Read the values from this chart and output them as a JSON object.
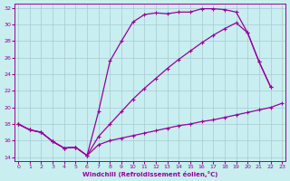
{
  "xlabel": "Windchill (Refroidissement éolien,°C)",
  "bg_color": "#c8eef0",
  "grid_color": "#aac8d0",
  "line_color": "#990099",
  "xlim": [
    -0.3,
    23.3
  ],
  "ylim": [
    13.5,
    32.5
  ],
  "xticks": [
    0,
    1,
    2,
    3,
    4,
    5,
    6,
    7,
    8,
    9,
    10,
    11,
    12,
    13,
    14,
    15,
    16,
    17,
    18,
    19,
    20,
    21,
    22,
    23
  ],
  "yticks": [
    14,
    16,
    18,
    20,
    22,
    24,
    26,
    28,
    30,
    32
  ],
  "s1_x": [
    0,
    1,
    2,
    3,
    4,
    5,
    6,
    7,
    8,
    9,
    10,
    11,
    12,
    13,
    14,
    15,
    16,
    17,
    18,
    19,
    20,
    21,
    22,
    23
  ],
  "s1_y": [
    18,
    17.3,
    17.0,
    15.9,
    15.1,
    15.2,
    14.2,
    15.5,
    16.0,
    16.3,
    16.6,
    16.9,
    17.2,
    17.5,
    17.8,
    18.0,
    18.3,
    18.5,
    18.8,
    19.1,
    19.4,
    19.7,
    20.0,
    20.5
  ],
  "s2_x": [
    0,
    1,
    2,
    3,
    4,
    5,
    6,
    7,
    8,
    9,
    10,
    11,
    12,
    13,
    14,
    15,
    16,
    17,
    18,
    19,
    20,
    21,
    22
  ],
  "s2_y": [
    18,
    17.3,
    17.0,
    15.9,
    15.1,
    15.2,
    14.2,
    19.5,
    25.6,
    28.0,
    30.3,
    31.2,
    31.4,
    31.3,
    31.5,
    31.5,
    31.9,
    31.9,
    31.8,
    31.5,
    29.0,
    25.5,
    22.5
  ],
  "s3_x": [
    0,
    1,
    2,
    3,
    4,
    5,
    6,
    7,
    8,
    9,
    10,
    11,
    12,
    13,
    14,
    15,
    16,
    17,
    18,
    19,
    20,
    21,
    22
  ],
  "s3_y": [
    18,
    17.3,
    17.0,
    15.9,
    15.1,
    15.2,
    14.2,
    16.5,
    18.0,
    19.5,
    21.0,
    22.3,
    23.5,
    24.7,
    25.8,
    26.8,
    27.8,
    28.7,
    29.5,
    30.2,
    29.0,
    25.5,
    22.5
  ]
}
